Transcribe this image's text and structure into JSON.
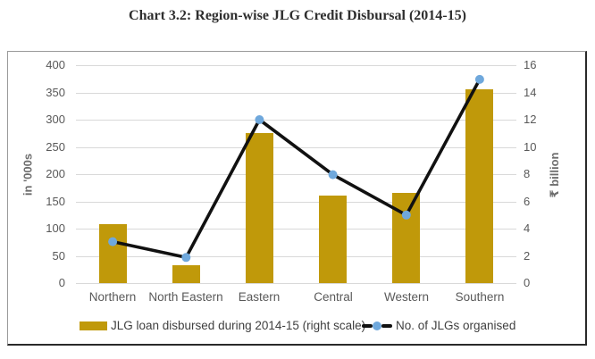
{
  "page": {
    "title": "Chart 3.2: Region-wise JLG Credit Disbursal (2014-15)"
  },
  "chart_data": {
    "type": "combo-bar-line",
    "categories": [
      "Northern",
      "North Eastern",
      "Eastern",
      "Central",
      "Western",
      "Southern"
    ],
    "series": [
      {
        "name": "JLG loan disbursed during 2014-15 (right scale)",
        "type": "bar",
        "axis": "right",
        "unit": "₹ billion",
        "values": [
          4.3,
          1.3,
          11.0,
          6.4,
          6.6,
          14.2
        ]
      },
      {
        "name": "No. of JLGs organised",
        "type": "line",
        "axis": "left",
        "unit": "in '000s",
        "values": [
          76,
          47,
          300,
          199,
          125,
          374
        ]
      }
    ],
    "left_axis": {
      "label": "in '000s",
      "min": 0,
      "max": 400,
      "ticks": [
        400,
        350,
        300,
        250,
        200,
        150,
        100,
        50,
        0
      ]
    },
    "right_axis": {
      "label": "₹ billion",
      "min": 0,
      "max": 16,
      "ticks": [
        16,
        14,
        12,
        10,
        8,
        6,
        4,
        2,
        0
      ]
    },
    "grid": true,
    "legend_position": "bottom",
    "colors": {
      "bar": "#C0990A",
      "line": "#111111",
      "marker": "#6FA8DC",
      "grid": "#D9D9D9",
      "tick_text": "#595959"
    }
  }
}
